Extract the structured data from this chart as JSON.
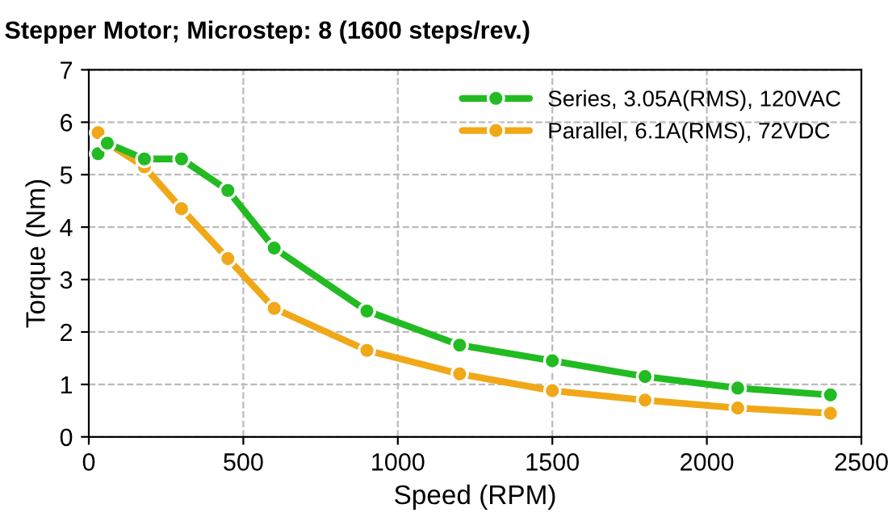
{
  "chart_data": {
    "type": "line",
    "title": "Stepper Motor; Microstep: 8 (1600 steps/rev.)",
    "xlabel": "Speed (RPM)",
    "ylabel": "Torque (Nm)",
    "x": [
      30,
      60,
      180,
      300,
      450,
      600,
      900,
      1200,
      1500,
      1800,
      2100,
      2400
    ],
    "series": [
      {
        "name": "Series, 3.05A(RMS), 120VAC",
        "color": "#22bb22",
        "values": [
          5.4,
          5.6,
          5.3,
          5.3,
          4.7,
          3.6,
          2.4,
          1.75,
          1.45,
          1.15,
          0.93,
          0.8
        ]
      },
      {
        "name": "Parallel, 6.1A(RMS), 72VDC",
        "color": "#f0a818",
        "values": [
          5.8,
          5.6,
          5.15,
          4.35,
          3.4,
          2.45,
          1.65,
          1.2,
          0.88,
          0.7,
          0.55,
          0.45
        ]
      }
    ],
    "xlim": [
      0,
      2500
    ],
    "xticks": [
      0,
      500,
      1000,
      1500,
      2000,
      2500
    ],
    "ylim": [
      0,
      7
    ],
    "yticks": [
      0,
      1,
      2,
      3,
      4,
      5,
      6,
      7
    ],
    "grid": true,
    "legend": "top right",
    "marker": "circle",
    "line_style": "solid"
  }
}
